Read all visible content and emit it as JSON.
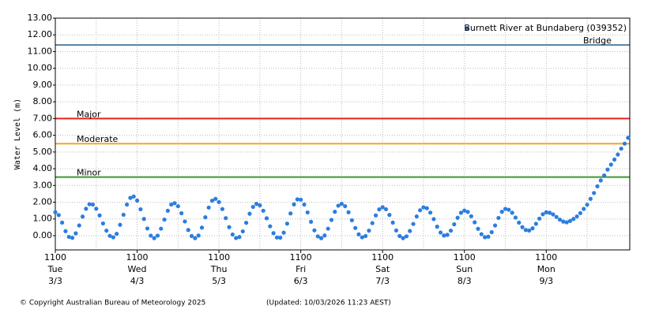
{
  "chart_data": {
    "type": "scatter",
    "y_label": "Water Level (m)",
    "ylim": [
      -0.85,
      13
    ],
    "yticks": [
      {
        "value": 0,
        "label": "0.00"
      },
      {
        "value": 1,
        "label": "1.00"
      },
      {
        "value": 2,
        "label": "2.00"
      },
      {
        "value": 3,
        "label": "3.00"
      },
      {
        "value": 4,
        "label": "4.00"
      },
      {
        "value": 5,
        "label": "5.00"
      },
      {
        "value": 6,
        "label": "6.00"
      },
      {
        "value": 7,
        "label": "7.00"
      },
      {
        "value": 8,
        "label": "8.00"
      },
      {
        "value": 9,
        "label": "9.00"
      },
      {
        "value": 10,
        "label": "10.00"
      },
      {
        "value": 11,
        "label": "11.00"
      },
      {
        "value": 12,
        "label": "12.00"
      },
      {
        "value": 13,
        "label": "13.00"
      }
    ],
    "xlim": [
      0,
      168.5
    ],
    "xticks": [
      {
        "value": 0,
        "label": "1100"
      },
      {
        "value": 24,
        "label": "1100"
      },
      {
        "value": 48,
        "label": "1100"
      },
      {
        "value": 72,
        "label": "1100"
      },
      {
        "value": 96,
        "label": "1100"
      },
      {
        "value": 120,
        "label": "1100"
      },
      {
        "value": 144,
        "label": "1100"
      }
    ],
    "xtick_days": [
      "Tue",
      "Wed",
      "Thu",
      "Fri",
      "Sat",
      "Sun",
      "Mon"
    ],
    "xtick_dates": [
      "3/3",
      "4/3",
      "5/3",
      "6/3",
      "7/3",
      "8/3",
      "9/3"
    ],
    "x_minor_grid": [
      12,
      36,
      60,
      84,
      108,
      132,
      156
    ],
    "grid": true,
    "thresholds": [
      {
        "name": "Bridge",
        "value": 11.4,
        "color": "#5a86a8"
      },
      {
        "name": "Major",
        "value": 7.0,
        "color": "#e8231c"
      },
      {
        "name": "Moderate",
        "value": 5.5,
        "color": "#f5a623"
      },
      {
        "name": "Minor",
        "value": 3.5,
        "color": "#3a9a2a"
      }
    ],
    "legend": "top-right",
    "series": [
      {
        "name": "Burnett River at Bundaberg (039352)",
        "color": "#2b7de0",
        "x": [
          0,
          1,
          2,
          3,
          4,
          5,
          6,
          7,
          8,
          9,
          10,
          11,
          12,
          13,
          14,
          15,
          16,
          17,
          18,
          19,
          20,
          21,
          22,
          23,
          24,
          25,
          26,
          27,
          28,
          29,
          30,
          31,
          32,
          33,
          34,
          35,
          36,
          37,
          38,
          39,
          40,
          41,
          42,
          43,
          44,
          45,
          46,
          47,
          48,
          49,
          50,
          51,
          52,
          53,
          54,
          55,
          56,
          57,
          58,
          59,
          60,
          61,
          62,
          63,
          64,
          65,
          66,
          67,
          68,
          69,
          70,
          71,
          72,
          73,
          74,
          75,
          76,
          77,
          78,
          79,
          80,
          81,
          82,
          83,
          84,
          85,
          86,
          87,
          88,
          89,
          90,
          91,
          92,
          93,
          94,
          95,
          96,
          97,
          98,
          99,
          100,
          101,
          102,
          103,
          104,
          105,
          106,
          107,
          108,
          109,
          110,
          111,
          112,
          113,
          114,
          115,
          116,
          117,
          118,
          119,
          120,
          121,
          122,
          123,
          124,
          125,
          126,
          127,
          128,
          129,
          130,
          131,
          132,
          133,
          134,
          135,
          136,
          137,
          138,
          139,
          140,
          141,
          142,
          143,
          144,
          145,
          146,
          147,
          148,
          149,
          150,
          151,
          152,
          153,
          154,
          155,
          156,
          157,
          158,
          159,
          160,
          161,
          162,
          163,
          164,
          165,
          166,
          167,
          168
        ],
        "values": [
          1.4,
          1.23,
          0.78,
          0.27,
          -0.07,
          -0.13,
          0.14,
          0.61,
          1.14,
          1.61,
          1.88,
          1.86,
          1.61,
          1.21,
          0.73,
          0.3,
          -0.01,
          -0.1,
          0.11,
          0.65,
          1.25,
          1.86,
          2.26,
          2.34,
          2.1,
          1.58,
          1.0,
          0.43,
          0.0,
          -0.15,
          0.0,
          0.42,
          0.96,
          1.49,
          1.86,
          1.94,
          1.76,
          1.34,
          0.85,
          0.34,
          -0.02,
          -0.15,
          0.01,
          0.48,
          1.1,
          1.68,
          2.09,
          2.2,
          2.01,
          1.59,
          1.05,
          0.51,
          0.07,
          -0.14,
          -0.08,
          0.26,
          0.77,
          1.31,
          1.72,
          1.9,
          1.81,
          1.49,
          1.04,
          0.56,
          0.15,
          -0.11,
          -0.12,
          0.18,
          0.72,
          1.33,
          1.87,
          2.17,
          2.15,
          1.86,
          1.39,
          0.83,
          0.32,
          -0.04,
          -0.15,
          0.01,
          0.42,
          0.94,
          1.43,
          1.79,
          1.9,
          1.76,
          1.4,
          0.92,
          0.46,
          0.08,
          -0.1,
          -0.02,
          0.3,
          0.75,
          1.21,
          1.57,
          1.7,
          1.58,
          1.24,
          0.78,
          0.31,
          -0.02,
          -0.15,
          -0.04,
          0.28,
          0.7,
          1.15,
          1.52,
          1.69,
          1.64,
          1.38,
          0.99,
          0.54,
          0.19,
          0.01,
          0.05,
          0.3,
          0.68,
          1.07,
          1.37,
          1.5,
          1.42,
          1.16,
          0.8,
          0.41,
          0.09,
          -0.09,
          -0.06,
          0.21,
          0.61,
          1.06,
          1.43,
          1.6,
          1.55,
          1.37,
          1.08,
          0.78,
          0.51,
          0.34,
          0.31,
          0.44,
          0.71,
          1.02,
          1.28,
          1.4,
          1.37,
          1.27,
          1.12,
          0.96,
          0.84,
          0.8,
          0.88,
          1.0,
          1.15,
          1.35,
          1.6,
          1.85,
          2.2,
          2.55,
          2.95,
          3.3,
          3.6,
          3.95,
          4.25,
          4.55,
          4.85,
          5.2,
          5.5,
          5.85
        ]
      }
    ]
  },
  "footer": {
    "copyright": "© Copyright Australian Bureau of Meteorology 2025",
    "updated": "(Updated: 10/03/2026 11:23 AEST)"
  }
}
